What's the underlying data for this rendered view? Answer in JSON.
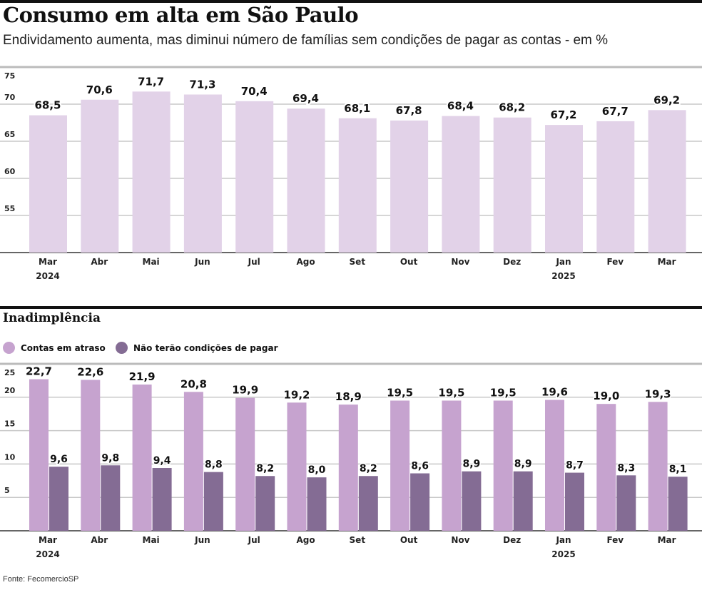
{
  "title": "Consumo em alta em São Paulo",
  "subtitle": "Endividamento aumenta, mas diminui número de famílias sem condições de pagar as contas - em %",
  "section2_title": "Inadimplência",
  "source": "Fonte: FecomercioSP",
  "colors": {
    "top_bar": "#e2d2e8",
    "atraso": "#c6a3cf",
    "sem_condicoes": "#846c94"
  },
  "chart_data": [
    {
      "type": "bar",
      "categories": [
        "Mar",
        "Abr",
        "Mai",
        "Jun",
        "Jul",
        "Ago",
        "Set",
        "Out",
        "Nov",
        "Dez",
        "Jan",
        "Fev",
        "Mar"
      ],
      "year_labels": [
        {
          "index": 0,
          "label": "2024"
        },
        {
          "index": 10,
          "label": "2025"
        }
      ],
      "values": [
        68.5,
        70.6,
        71.7,
        71.3,
        70.4,
        69.4,
        68.1,
        67.8,
        68.4,
        68.2,
        67.2,
        67.7,
        69.2
      ],
      "value_labels": [
        "68,5",
        "70,6",
        "71,7",
        "71,3",
        "70,4",
        "69,4",
        "68,1",
        "67,8",
        "68,4",
        "68,2",
        "67,2",
        "67,7",
        "69,2"
      ],
      "ylim": [
        50,
        75
      ],
      "yticks": [
        55,
        60,
        65,
        70,
        75
      ],
      "grid": true
    },
    {
      "type": "bar",
      "categories": [
        "Mar",
        "Abr",
        "Mai",
        "Jun",
        "Jul",
        "Ago",
        "Set",
        "Out",
        "Nov",
        "Dez",
        "Jan",
        "Fev",
        "Mar"
      ],
      "year_labels": [
        {
          "index": 0,
          "label": "2024"
        },
        {
          "index": 10,
          "label": "2025"
        }
      ],
      "legend": "top-left",
      "series": [
        {
          "name": "Contas em atraso",
          "values": [
            22.7,
            22.6,
            21.9,
            20.8,
            19.9,
            19.2,
            18.9,
            19.5,
            19.5,
            19.5,
            19.6,
            19.0,
            19.3
          ],
          "labels": [
            "22,7",
            "22,6",
            "21,9",
            "20,8",
            "19,9",
            "19,2",
            "18,9",
            "19,5",
            "19,5",
            "19,5",
            "19,6",
            "19,0",
            "19,3"
          ]
        },
        {
          "name": "Não terão condições de pagar",
          "values": [
            9.6,
            9.8,
            9.4,
            8.8,
            8.2,
            8.0,
            8.2,
            8.6,
            8.9,
            8.9,
            8.7,
            8.3,
            8.1
          ],
          "labels": [
            "9,6",
            "9,8",
            "9,4",
            "8,8",
            "8,2",
            "8,0",
            "8,2",
            "8,6",
            "8,9",
            "8,9",
            "8,7",
            "8,3",
            "8,1"
          ]
        }
      ],
      "ylim": [
        0,
        25
      ],
      "yticks": [
        5,
        10,
        15,
        20,
        25
      ],
      "grid": true
    }
  ]
}
